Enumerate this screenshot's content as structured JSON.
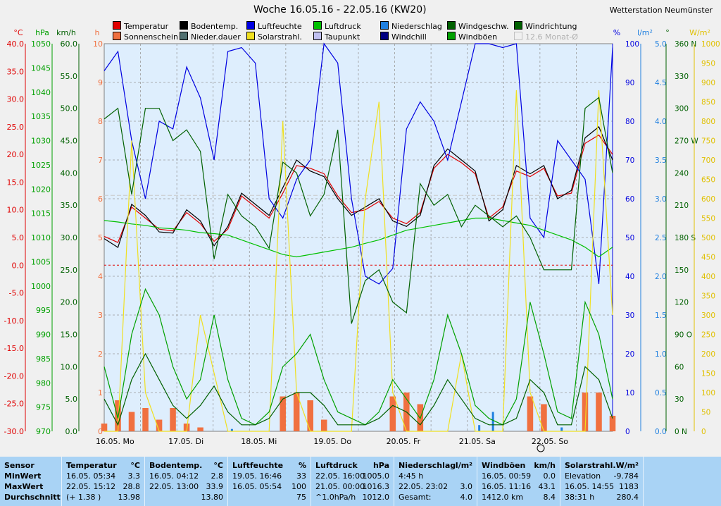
{
  "title": "Woche 16.05.16 - 22.05.16 (KW20)",
  "station": "Wetterstation Neumünster",
  "legend": [
    {
      "label": "Temperatur",
      "color": "#e00000"
    },
    {
      "label": "Bodentemp.",
      "color": "#000000"
    },
    {
      "label": "Luftfeuchte",
      "color": "#0000e0"
    },
    {
      "label": "Luftdruck",
      "color": "#00c000"
    },
    {
      "label": "Niederschlag",
      "color": "#2080e0"
    },
    {
      "label": "Windgeschw.",
      "color": "#006000"
    },
    {
      "label": "Windrichtung",
      "color": "#006000"
    },
    {
      "label": "Sonnenschein",
      "color": "#f07040"
    },
    {
      "label": "Nieder.dauer",
      "color": "#507070"
    },
    {
      "label": "Solarstrahl.",
      "color": "#f0e020"
    },
    {
      "label": "Taupunkt",
      "color": "#c0c0f0"
    },
    {
      "label": "Windchill",
      "color": "#000080"
    },
    {
      "label": "Windböen",
      "color": "#00a000"
    },
    {
      "label": "12.6 Monat-Ø",
      "color": "#f0f0f0"
    }
  ],
  "chart_data": {
    "type": "line",
    "x_labels": [
      "16.05.  Mo",
      "17.05.  Di",
      "18.05.  Mi",
      "19.05.  Do",
      "20.05.  Fr",
      "21.05.  Sa",
      "22.05.  So"
    ],
    "axes_left": {
      "temp": {
        "unit": "°C",
        "ticks": [
          "40.0",
          "35.0",
          "30.0",
          "25.0",
          "20.0",
          "15.0",
          "10.0",
          "5.0",
          "0.0",
          "-5.0",
          "-10.0",
          "-15.0",
          "-20.0",
          "-25.0",
          "-30.0"
        ],
        "color": "#e00000"
      },
      "pressure": {
        "unit": "hPa",
        "ticks": [
          "1050",
          "1045",
          "1040",
          "1035",
          "1030",
          "1025",
          "1020",
          "1015",
          "1010",
          "1005",
          "1000",
          "995",
          "990",
          "985",
          "980",
          "975",
          "970"
        ],
        "color": "#00a000"
      },
      "wind": {
        "unit": "km/h",
        "ticks": [
          "60.0",
          "55.0",
          "50.0",
          "45.0",
          "40.0",
          "35.0",
          "30.0",
          "25.0",
          "20.0",
          "15.0",
          "10.0",
          "5.0",
          "0.0"
        ],
        "color": "#006000"
      },
      "hours": {
        "unit": "h",
        "ticks": [
          "10",
          "9",
          "8",
          "7",
          "6",
          "5",
          "4",
          "3",
          "2",
          "1",
          "0"
        ],
        "color": "#f07040"
      }
    },
    "axes_right": {
      "humidity": {
        "unit": "%",
        "ticks": [
          "100",
          "90",
          "80",
          "70",
          "60",
          "50",
          "40",
          "30",
          "20",
          "10",
          "0"
        ],
        "color": "#0000e0"
      },
      "rain": {
        "unit": "l/m²",
        "ticks": [
          "5.0",
          "4.5",
          "4.0",
          "3.5",
          "3.0",
          "2.5",
          "2.0",
          "1.5",
          "1.0",
          "0.5",
          "0.0"
        ],
        "color": "#2080e0"
      },
      "dir": {
        "unit": "°",
        "ticks": [
          "360 N",
          "330",
          "300",
          "270 W",
          "240",
          "210",
          "180 S",
          "150",
          "120",
          "90 O",
          "60",
          "30",
          "0 N"
        ],
        "color": "#006000"
      },
      "solar": {
        "unit": "W/m²",
        "ticks": [
          "1000",
          "950",
          "900",
          "850",
          "800",
          "750",
          "700",
          "650",
          "600",
          "550",
          "500",
          "450",
          "400",
          "350",
          "300",
          "250",
          "200",
          "150",
          "100",
          "50",
          "0"
        ],
        "color": "#e0c000"
      }
    },
    "series": [
      {
        "name": "Temperatur",
        "color": "#e00000",
        "ylim": [
          -30,
          40
        ],
        "values": [
          5.2,
          4.1,
          10.5,
          8.5,
          6.5,
          6.2,
          9.5,
          7.5,
          4.3,
          6.5,
          12.5,
          10.5,
          8.5,
          13.0,
          18.0,
          17.5,
          16.5,
          12.5,
          9.5,
          10.0,
          11.5,
          8.5,
          7.5,
          9.5,
          17.5,
          20.0,
          18.5,
          16.5,
          8.5,
          10.5,
          17.0,
          16.0,
          17.5,
          12.5,
          13.0,
          22.0,
          23.5,
          20.0
        ]
      },
      {
        "name": "Bodentemp.",
        "color": "#000000",
        "ylim": [
          -30,
          40
        ],
        "values": [
          4.8,
          3.2,
          11.0,
          9.0,
          6.0,
          5.8,
          10.0,
          8.0,
          3.5,
          7.0,
          13.0,
          11.0,
          9.0,
          14.0,
          19.0,
          17.0,
          16.0,
          12.0,
          9.0,
          10.5,
          12.0,
          8.0,
          7.0,
          9.0,
          18.0,
          21.0,
          19.0,
          17.0,
          8.0,
          10.0,
          18.0,
          16.5,
          18.0,
          12.0,
          13.5,
          23.0,
          25.0,
          19.0
        ]
      },
      {
        "name": "Luftfeuchte",
        "color": "#0000e0",
        "ylim": [
          0,
          100
        ],
        "values": [
          93,
          98,
          75,
          60,
          80,
          78,
          94,
          86,
          70,
          98,
          99,
          95,
          60,
          55,
          65,
          70,
          100,
          95,
          60,
          40,
          38,
          42,
          78,
          85,
          80,
          70,
          85,
          100,
          100,
          99,
          100,
          55,
          50,
          75,
          70,
          65,
          38,
          99
        ]
      },
      {
        "name": "Luftdruck",
        "color": "#00c000",
        "ylim": [
          970,
          1050
        ],
        "values": [
          1013.5,
          1013.2,
          1012.8,
          1012.5,
          1012.0,
          1011.8,
          1011.5,
          1011.0,
          1010.8,
          1010.5,
          1009.5,
          1008.5,
          1007.5,
          1006.5,
          1006.0,
          1006.5,
          1007.0,
          1007.5,
          1008.0,
          1008.8,
          1009.5,
          1010.5,
          1011.5,
          1012.0,
          1012.5,
          1013.0,
          1013.5,
          1014.0,
          1014.0,
          1013.5,
          1013.0,
          1012.5,
          1011.5,
          1010.5,
          1009.5,
          1008.0,
          1006.0,
          1008.0
        ]
      },
      {
        "name": "Solarstrahl.",
        "color": "#f0e020",
        "ylim": [
          0,
          1000
        ],
        "values": [
          0,
          0,
          750,
          100,
          0,
          0,
          0,
          300,
          150,
          0,
          0,
          0,
          0,
          800,
          100,
          0,
          0,
          0,
          0,
          600,
          850,
          100,
          0,
          0,
          0,
          0,
          200,
          0,
          0,
          0,
          880,
          100,
          0,
          0,
          0,
          0,
          880,
          300
        ]
      },
      {
        "name": "Windböen",
        "color": "#00a000",
        "ylim": [
          0,
          60
        ],
        "values": [
          10,
          2,
          15,
          22,
          18,
          10,
          5,
          8,
          18,
          8,
          2,
          1,
          3,
          10,
          12,
          15,
          8,
          3,
          2,
          1,
          3,
          8,
          5,
          2,
          8,
          18,
          12,
          4,
          2,
          1,
          5,
          20,
          12,
          3,
          2,
          20,
          15,
          5
        ]
      },
      {
        "name": "Windgeschw.",
        "color": "#006000",
        "ylim": [
          0,
          60
        ],
        "values": [
          5,
          1,
          8,
          12,
          8,
          4,
          2,
          4,
          7,
          3,
          1,
          1,
          2,
          5,
          6,
          6,
          4,
          1,
          1,
          1,
          2,
          4,
          3,
          1,
          4,
          8,
          5,
          2,
          1,
          1,
          2,
          8,
          6,
          1,
          1,
          10,
          8,
          2
        ]
      },
      {
        "name": "Windrichtung",
        "color": "#006000",
        "ylim": [
          0,
          360
        ],
        "values": [
          290,
          300,
          220,
          300,
          300,
          270,
          280,
          260,
          160,
          220,
          200,
          190,
          170,
          250,
          240,
          200,
          220,
          280,
          100,
          140,
          150,
          120,
          110,
          230,
          210,
          220,
          190,
          210,
          200,
          190,
          200,
          180,
          150,
          150,
          150,
          300,
          310,
          240
        ]
      }
    ],
    "bars": {
      "name": "Sonnenschein",
      "color": "#f07040",
      "values": [
        0.2,
        0.8,
        0.5,
        0.6,
        0.3,
        0.6,
        0.2,
        0.1,
        0,
        0,
        0,
        0,
        0,
        0.9,
        1.0,
        0.8,
        0.3,
        0,
        0,
        0,
        0,
        0.9,
        1.0,
        0.7,
        0,
        0,
        0,
        0,
        0,
        0,
        0,
        0.9,
        0.7,
        0,
        0,
        1.0,
        1.0,
        0.4
      ]
    },
    "rain_bars": {
      "name": "Niederschlag",
      "color": "#2080e0",
      "values": [
        0,
        0,
        0,
        0,
        0,
        0,
        0,
        0,
        0,
        0.03,
        0,
        0,
        0,
        0,
        0,
        0,
        0,
        0,
        0,
        0,
        0,
        0,
        0,
        0,
        0,
        0,
        0,
        0.08,
        0.25,
        0,
        0,
        0,
        0,
        0.05,
        0,
        0,
        0,
        0
      ]
    },
    "ref_lines": {
      "monat_avg": 12.6,
      "zero": 0.0
    }
  },
  "table": {
    "row_labels": [
      "Sensor",
      "MinWert",
      "MaxWert",
      "Durchschnitt"
    ],
    "columns": [
      {
        "head": "Temperatur",
        "unit": "°C",
        "rows": [
          [
            "16.05.  05:34",
            "3.3"
          ],
          [
            "22.05.  15:12",
            "28.8"
          ],
          [
            "(+ 1.38 )",
            "13.98"
          ]
        ]
      },
      {
        "head": "Bodentemp.",
        "unit": "°C",
        "rows": [
          [
            "16.05.  04:12",
            "2.8"
          ],
          [
            "22.05.  13:00",
            "33.9"
          ],
          [
            "",
            "13.80"
          ]
        ]
      },
      {
        "head": "Luftfeuchte",
        "unit": "%",
        "rows": [
          [
            "19.05.  16:46",
            "33"
          ],
          [
            "16.05.  05:54",
            "100"
          ],
          [
            "",
            "75"
          ]
        ]
      },
      {
        "head": "Luftdruck",
        "unit": "hPa",
        "rows": [
          [
            "22.05.  16:00",
            "1005.0"
          ],
          [
            "21.05.  00:00",
            "1016.3"
          ],
          [
            "^1.0hPa/h",
            "1012.0"
          ]
        ]
      },
      {
        "head": "Niederschlag",
        "unit": "l/m²",
        "rows": [
          [
            "4:45 h",
            ""
          ],
          [
            "22.05.  23:02",
            "3.0"
          ],
          [
            "Gesamt:",
            "4.0"
          ]
        ]
      },
      {
        "head": "Windböen",
        "unit": "km/h",
        "rows": [
          [
            "16.05.  00:59",
            "0.0"
          ],
          [
            "16.05.  11:16",
            "43.1"
          ],
          [
            "1412.0 km",
            "8.4"
          ]
        ]
      },
      {
        "head": "Solarstrahl.",
        "unit": "W/m²",
        "rows": [
          [
            "Elevation",
            "-9.784"
          ],
          [
            "16.05.  14:55",
            "1183"
          ],
          [
            "38:31 h",
            "280.4"
          ]
        ]
      }
    ]
  }
}
